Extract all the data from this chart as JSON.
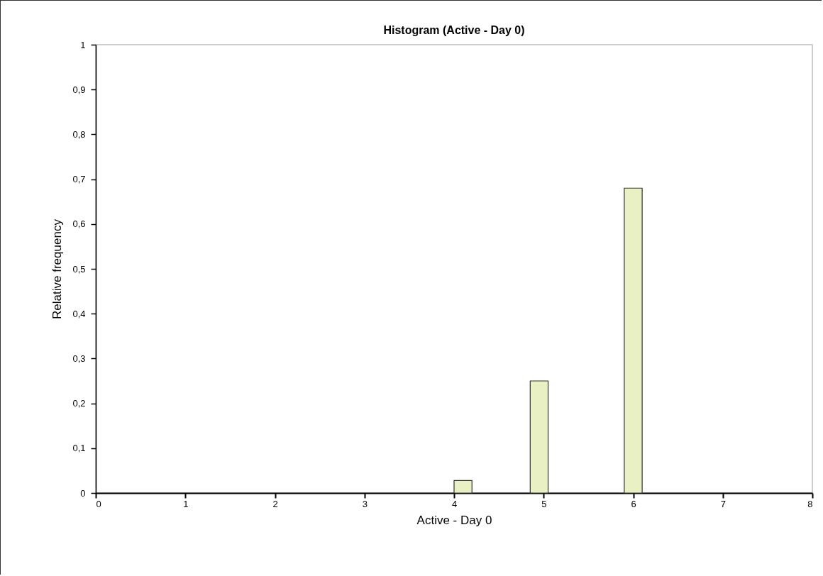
{
  "chart_data": {
    "type": "histogram",
    "title": "Histogram  (Active - Day 0)",
    "xlabel": "Active - Day 0",
    "ylabel": "Relative frequency",
    "bins": [
      4,
      4.2,
      4.85,
      5.05,
      5.9,
      6.1
    ],
    "values": [
      0.028,
      0,
      0.25,
      0,
      0.68
    ],
    "color": "#e8f0c4",
    "xlim": [
      0,
      8
    ],
    "xticks": [
      0,
      1,
      2,
      3,
      4,
      5,
      6,
      7,
      8
    ],
    "ylim": [
      0,
      1
    ],
    "yticks": [
      0,
      {
        "value": 0.1,
        "label": "0,1"
      },
      {
        "value": 0.2,
        "label": "0,2"
      },
      {
        "value": 0.3,
        "label": "0,3"
      },
      {
        "value": 0.4,
        "label": "0,4"
      },
      {
        "value": 0.5,
        "label": "0,5"
      },
      {
        "value": 0.6,
        "label": "0,6"
      },
      {
        "value": 0.7,
        "label": "0,7"
      },
      {
        "value": 0.8,
        "label": "0,8"
      },
      {
        "value": 0.9,
        "label": "0,9"
      },
      1
    ]
  }
}
